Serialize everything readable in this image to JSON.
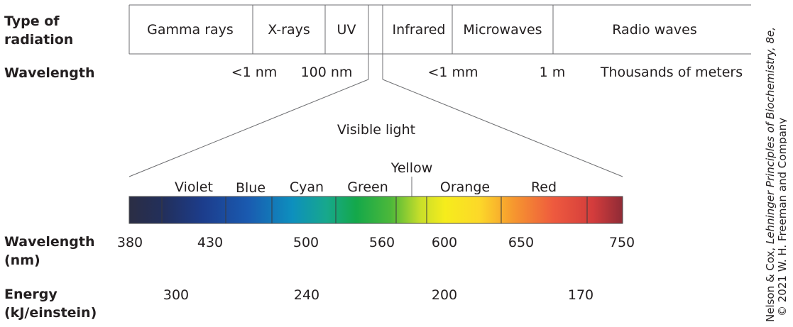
{
  "row_labels": {
    "type_line1": "Type of",
    "type_line2": "radiation",
    "wavelength": "Wavelength",
    "wavelength_nm_line1": "Wavelength",
    "wavelength_nm_line2": "(nm)",
    "energy_line1": "Energy",
    "energy_line2": "(kJ/einstein)"
  },
  "radiation_types": [
    "Gamma rays",
    "X-rays",
    "UV",
    "Infrared",
    "Microwaves",
    "Radio waves"
  ],
  "wavelength_marks": [
    "<1 nm",
    "100 nm",
    "<1 mm",
    "1 m",
    "Thousands of meters"
  ],
  "visible_light_label": "Visible light",
  "spectrum": {
    "colors": [
      "Violet",
      "Blue",
      "Cyan",
      "Green",
      "Yellow",
      "Orange",
      "Red"
    ],
    "wavelength_ticks": [
      380,
      430,
      500,
      560,
      600,
      650,
      750
    ],
    "energy_values": [
      300,
      240,
      200,
      170
    ],
    "gradient_colors": [
      "#2a2f4a",
      "#1a3f8a",
      "#1a5fb4",
      "#0a8fc0",
      "#10a060",
      "#1aae3a",
      "#a8cf28",
      "#f2ea1a",
      "#fbe12a",
      "#f7b22c",
      "#f2733a",
      "#ec4a40",
      "#c73838",
      "#9e2f36"
    ]
  },
  "credit": {
    "line1_a": "Nelson & Cox, ",
    "line1_b": "Lehninger Principles of Biochemistry, 8e,",
    "line2": "© 2021 W. H. Freeman and Company"
  }
}
